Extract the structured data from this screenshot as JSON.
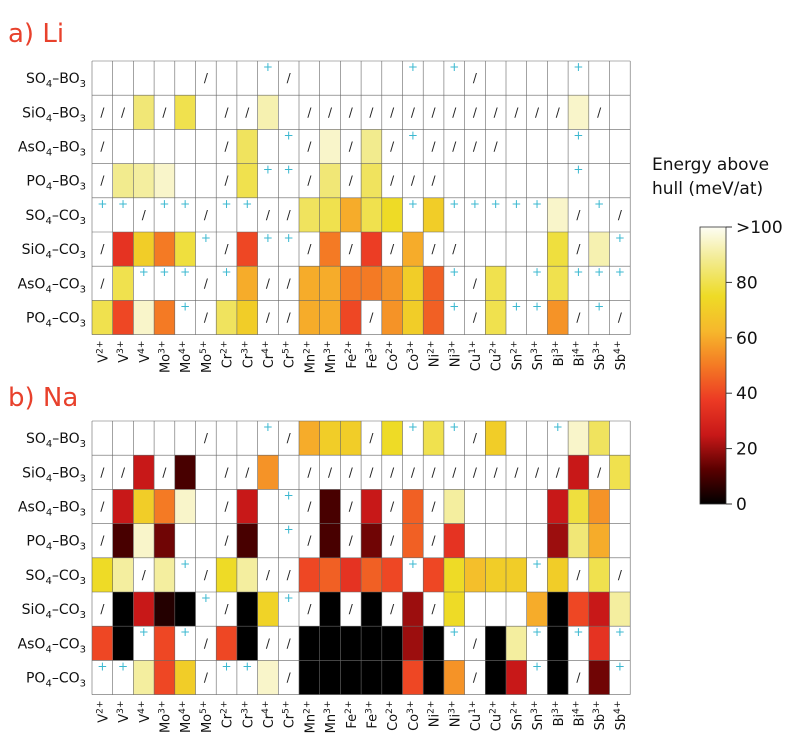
{
  "chart_data": {
    "type": "heatmap",
    "columns": [
      "V2+",
      "V3+",
      "V4+",
      "Mo3+",
      "Mo4+",
      "Mo5+",
      "Cr2+",
      "Cr3+",
      "Cr4+",
      "Cr5+",
      "Mn2+",
      "Mn3+",
      "Fe2+",
      "Fe3+",
      "Co2+",
      "Co3+",
      "Ni2+",
      "Ni3+",
      "Cu1+",
      "Cu2+",
      "Sn2+",
      "Sn3+",
      "Bi3+",
      "Bi4+",
      "Sb3+",
      "Sb4+"
    ],
    "rows": [
      "SO4-BO3",
      "SiO4-BO3",
      "AsO4-BO3",
      "PO4-BO3",
      "SO4-CO3",
      "SiO4-CO3",
      "AsO4-CO3",
      "PO4-CO3"
    ],
    "legend": {
      "P": "value plotted with '+' marker",
      "/": "slash marker",
      "null": "blank (no color)"
    },
    "panels": [
      {
        "title": "a) Li",
        "values": [
          [
            null,
            null,
            null,
            null,
            null,
            "/",
            null,
            null,
            "+",
            "/",
            null,
            null,
            null,
            null,
            null,
            "+",
            null,
            "+",
            "/",
            null,
            null,
            null,
            null,
            "+",
            null,
            null
          ],
          [
            "/",
            "/",
            85,
            "/",
            80,
            null,
            "/",
            "/",
            92,
            null,
            "/",
            "/",
            "/",
            "/",
            "/",
            "/",
            "/",
            "/",
            "/",
            "/",
            "/",
            "/",
            "/",
            95,
            "/",
            null
          ],
          [
            "/",
            null,
            null,
            null,
            null,
            null,
            "/",
            82,
            null,
            "+",
            "/",
            95,
            "/",
            88,
            "/",
            "+",
            "/",
            "/",
            "/",
            "/",
            null,
            null,
            null,
            "+",
            null,
            null
          ],
          [
            "/",
            88,
            90,
            95,
            null,
            null,
            "/",
            80,
            "+",
            "+",
            "/",
            85,
            "/",
            82,
            "/",
            "/",
            "/",
            null,
            null,
            null,
            null,
            null,
            null,
            "+",
            null,
            null
          ],
          [
            "+",
            "+",
            "/",
            "+",
            "+",
            "/",
            "+",
            "+",
            "/",
            "/",
            82,
            80,
            60,
            80,
            75,
            "+",
            70,
            "+",
            "+",
            "+",
            "+",
            "+",
            95,
            "/",
            "+",
            "/"
          ],
          [
            "/",
            35,
            70,
            50,
            78,
            "+",
            "/",
            40,
            "+",
            "+",
            "/",
            50,
            "/",
            38,
            "/",
            60,
            "/",
            "/",
            null,
            null,
            null,
            null,
            78,
            "/",
            92,
            "+"
          ],
          [
            "/",
            80,
            "+",
            "+",
            "+",
            "/",
            "+",
            60,
            "/",
            "/",
            60,
            60,
            50,
            50,
            55,
            70,
            45,
            "+",
            "/",
            80,
            null,
            "+",
            80,
            "+",
            "+",
            "+"
          ],
          [
            80,
            40,
            95,
            50,
            "+",
            "/",
            82,
            70,
            "/",
            "/",
            60,
            60,
            40,
            "/",
            55,
            70,
            45,
            "+",
            "/",
            80,
            "+",
            "+",
            55,
            "/",
            "+",
            "/"
          ]
        ]
      },
      {
        "title": "b) Na",
        "values": [
          [
            null,
            null,
            null,
            null,
            null,
            "/",
            null,
            null,
            "+",
            "/",
            60,
            70,
            70,
            "/",
            75,
            "+",
            80,
            "+",
            "/",
            70,
            null,
            null,
            "+",
            95,
            82,
            null
          ],
          [
            "/",
            "/",
            25,
            "/",
            10,
            null,
            "/",
            "/",
            55,
            null,
            "/",
            "/",
            "/",
            "/",
            "/",
            "/",
            "/",
            "/",
            "/",
            "/",
            "/",
            "/",
            "/",
            25,
            "/",
            80
          ],
          [
            "/",
            25,
            70,
            50,
            95,
            null,
            "/",
            25,
            null,
            "+",
            "/",
            10,
            "/",
            25,
            "/",
            45,
            "/",
            90,
            null,
            null,
            null,
            null,
            25,
            78,
            55,
            null
          ],
          [
            "/",
            10,
            95,
            15,
            null,
            null,
            "/",
            10,
            null,
            "+",
            "/",
            10,
            "/",
            15,
            "/",
            45,
            "/",
            35,
            null,
            null,
            null,
            null,
            20,
            85,
            60,
            null
          ],
          [
            75,
            90,
            "/",
            90,
            "+",
            "/",
            75,
            90,
            "/",
            "/",
            40,
            45,
            35,
            45,
            40,
            "+",
            40,
            75,
            65,
            70,
            70,
            "+",
            70,
            "/",
            80,
            "/"
          ],
          [
            "/",
            0,
            25,
            5,
            0,
            "+",
            "/",
            0,
            72,
            "+",
            "/",
            0,
            "/",
            0,
            "/",
            20,
            "/",
            75,
            null,
            null,
            null,
            60,
            0,
            40,
            25,
            90
          ],
          [
            40,
            0,
            "+",
            40,
            "+",
            "/",
            40,
            0,
            "/",
            "/",
            0,
            0,
            0,
            0,
            0,
            20,
            0,
            "+",
            "/",
            0,
            90,
            "+",
            0,
            "+",
            35,
            "+"
          ],
          [
            "+",
            "+",
            90,
            40,
            70,
            "/",
            "+",
            "+",
            95,
            "/",
            0,
            0,
            0,
            0,
            0,
            40,
            0,
            55,
            "/",
            0,
            25,
            "+",
            0,
            "/",
            15,
            "+"
          ]
        ]
      }
    ],
    "colorbar": {
      "title": [
        "Energy above",
        "hull (meV/at)"
      ],
      "ticks": [
        ">100",
        "80",
        "60",
        "40",
        "20",
        "0"
      ],
      "range": [
        0,
        100
      ],
      "colormap": [
        "#000000",
        "#5a0000",
        "#c81818",
        "#ec3a24",
        "#f47a24",
        "#f6b82c",
        "#eedb26",
        "#f2ea8a",
        "#fdfdf4"
      ]
    }
  }
}
